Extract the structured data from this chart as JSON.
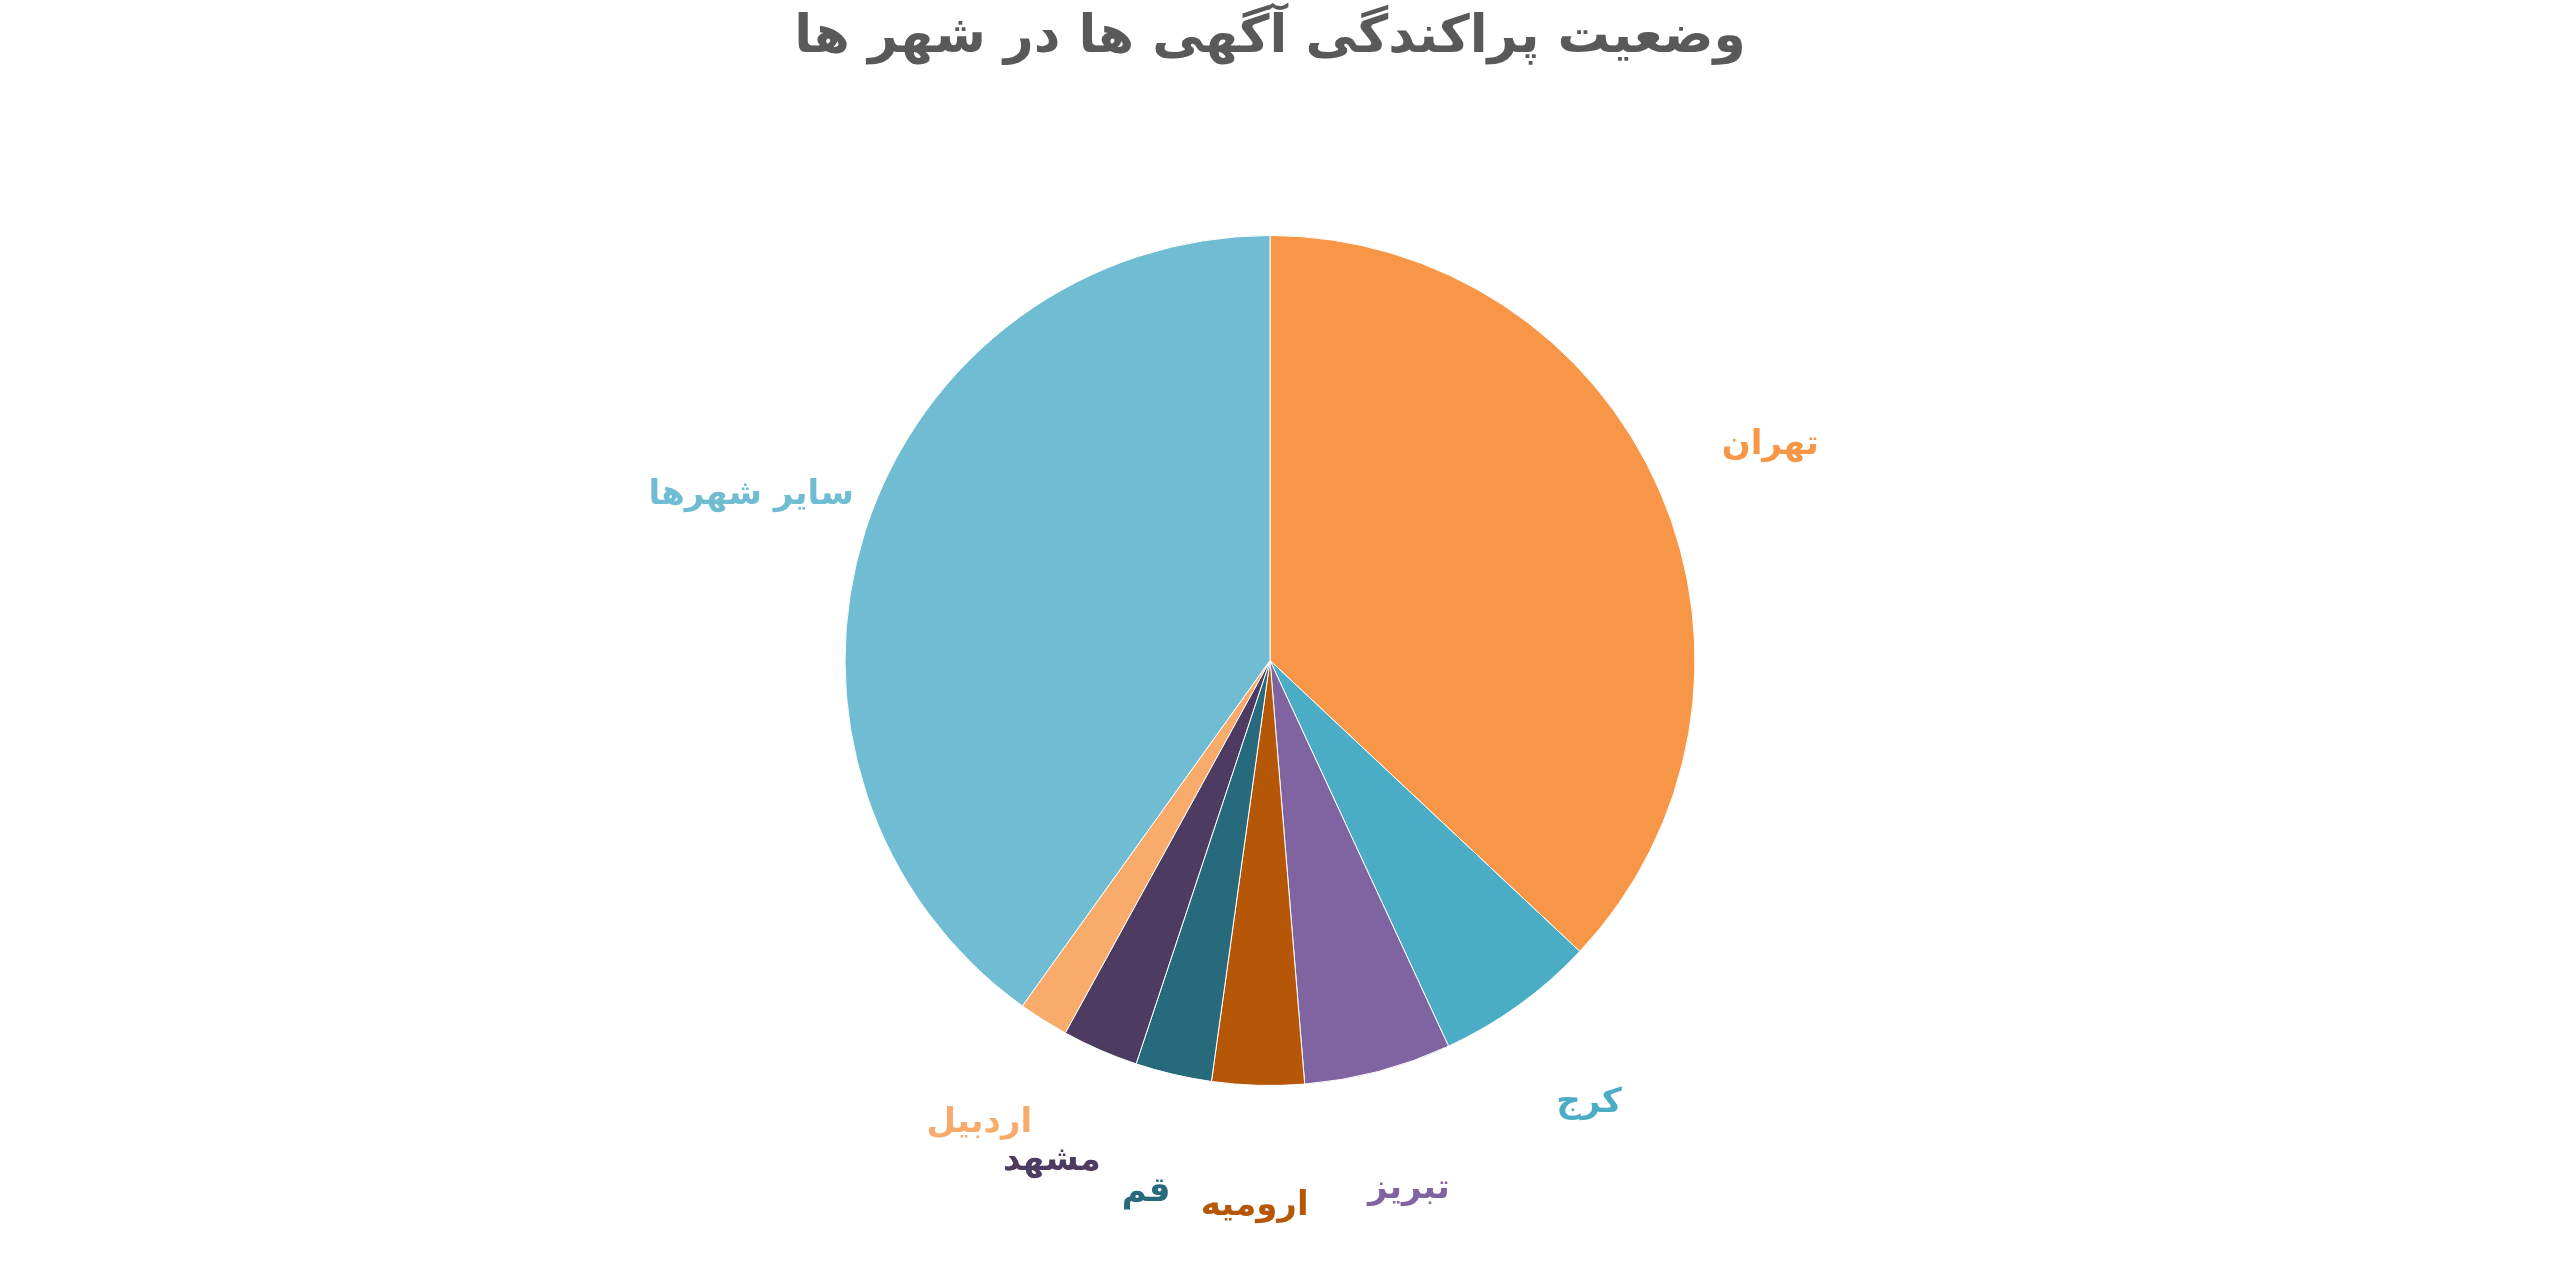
{
  "chart_data": {
    "type": "pie",
    "title": "وضعیت پراکندگی آگهی ها در شهر ها",
    "categories": [
      "تهران",
      "کرج",
      "تبریز",
      "ارومیه",
      "قم",
      "مشهد",
      "اردبیل",
      "سایر شهرها"
    ],
    "values": [
      37.0,
      6.1,
      5.6,
      3.5,
      2.9,
      2.9,
      1.9,
      40.1
    ],
    "colors": [
      "#f79646",
      "#4bacc6",
      "#8064a2",
      "#b65708",
      "#276a7c",
      "#4d3b62",
      "#f9ab6b",
      "#70bcd2"
    ],
    "legend": false
  }
}
